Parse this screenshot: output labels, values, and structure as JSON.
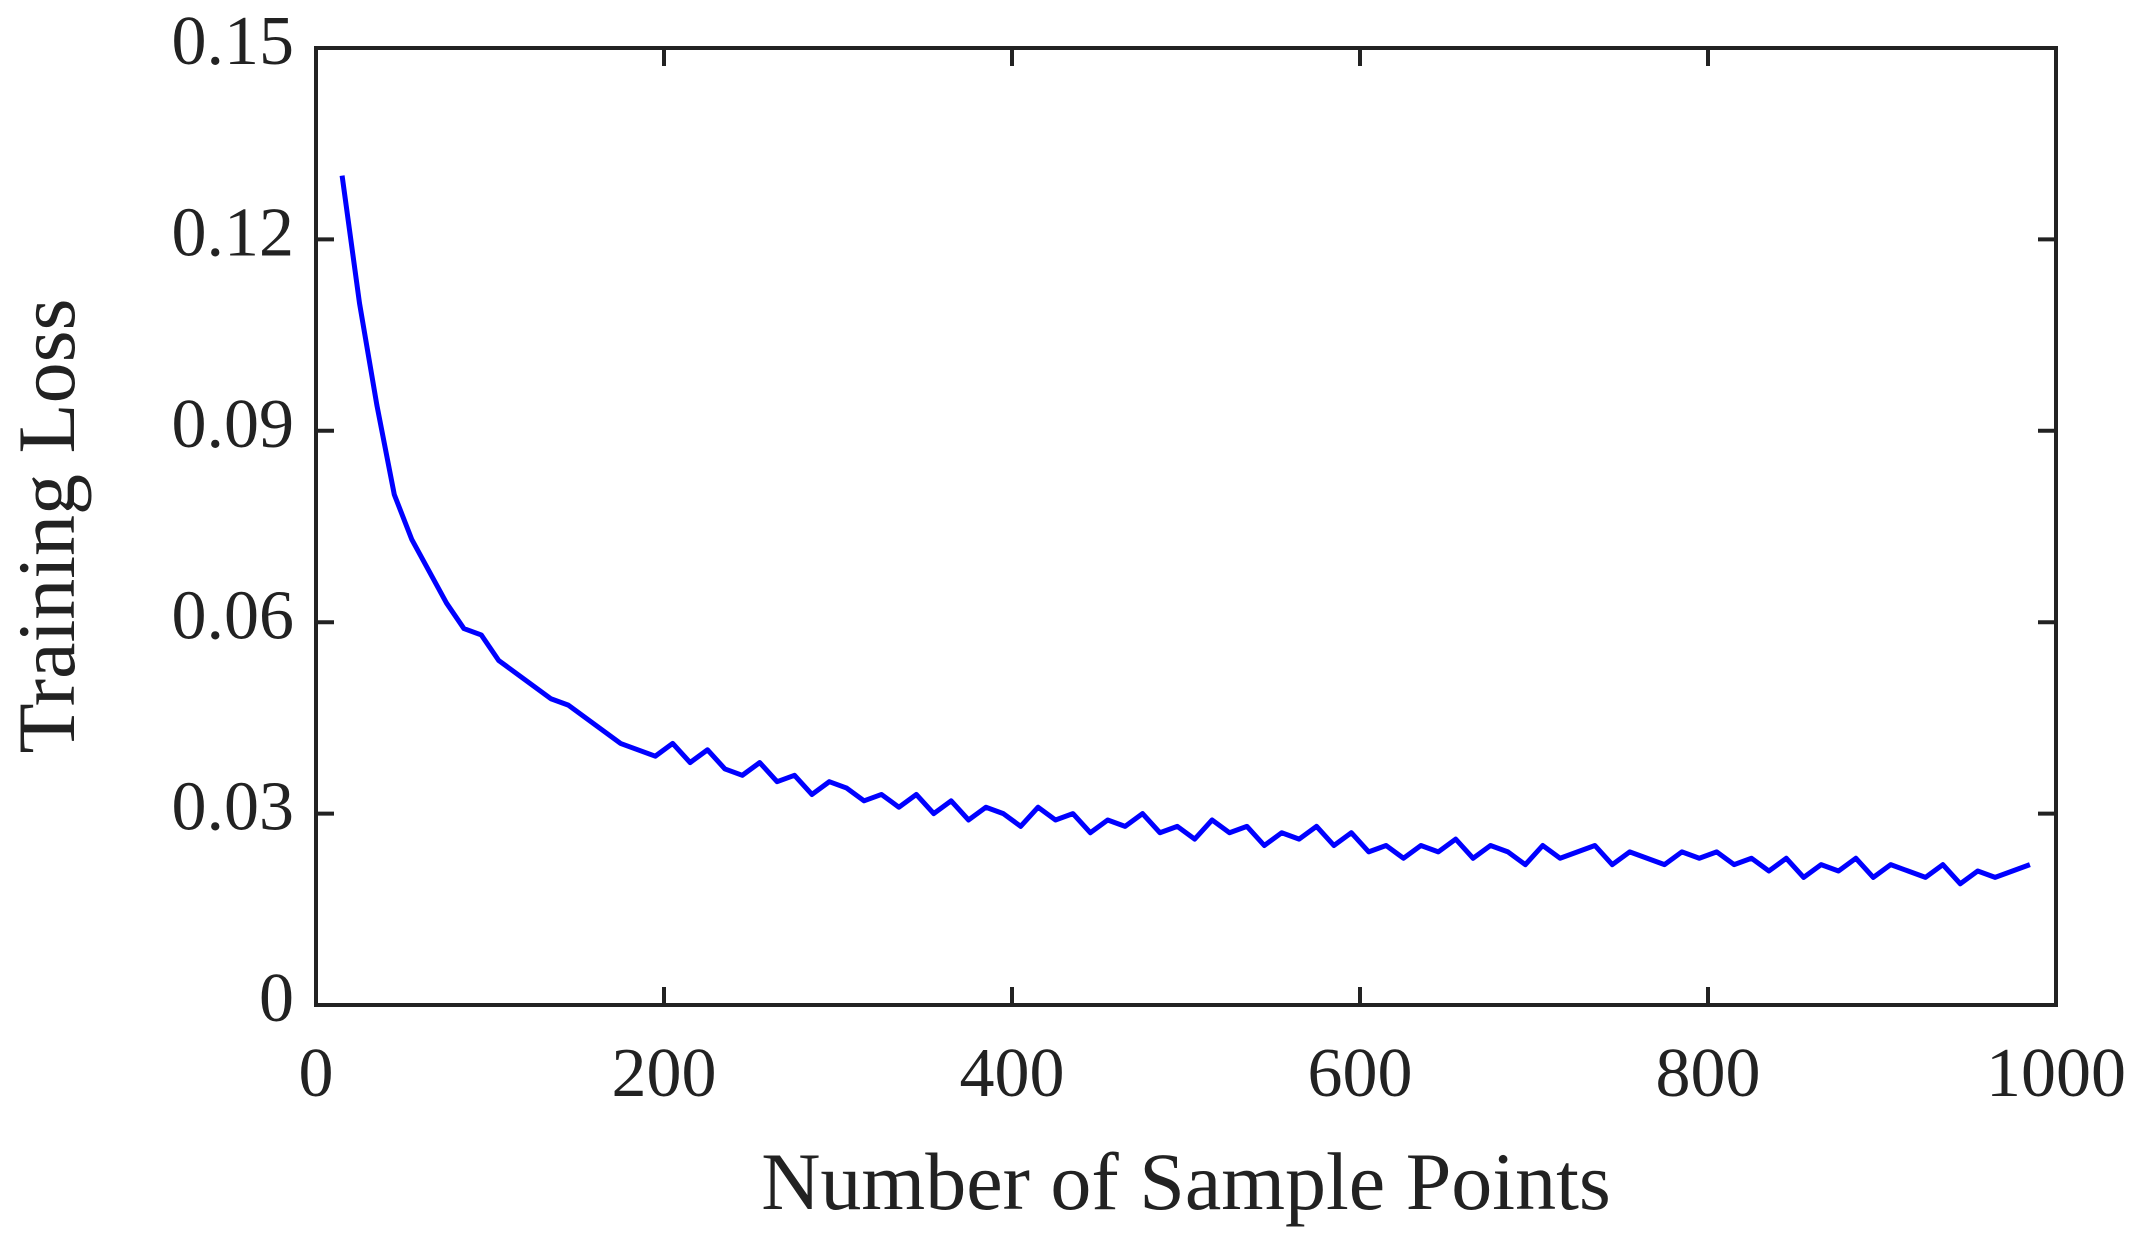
{
  "chart_data": {
    "type": "line",
    "x_label": "Number of Sample Points",
    "y_label": "Training Loss",
    "xlim": [
      0,
      1000
    ],
    "xticks": [
      0,
      200,
      400,
      600,
      800,
      1000
    ],
    "ylim": [
      0,
      0.15
    ],
    "yticks": [
      0,
      0.03,
      0.06,
      0.09,
      0.12,
      0.15
    ],
    "x": [
      15,
      25,
      35,
      45,
      55,
      65,
      75,
      85,
      95,
      105,
      115,
      125,
      135,
      145,
      155,
      165,
      175,
      185,
      195,
      205,
      215,
      225,
      235,
      245,
      255,
      265,
      275,
      285,
      295,
      305,
      315,
      325,
      335,
      345,
      355,
      365,
      375,
      385,
      395,
      405,
      415,
      425,
      435,
      445,
      455,
      465,
      475,
      485,
      495,
      505,
      515,
      525,
      535,
      545,
      555,
      565,
      575,
      585,
      595,
      605,
      615,
      625,
      635,
      645,
      655,
      665,
      675,
      685,
      695,
      705,
      715,
      725,
      735,
      745,
      755,
      765,
      775,
      785,
      795,
      805,
      815,
      825,
      835,
      845,
      855,
      865,
      875,
      885,
      895,
      905,
      915,
      925,
      935,
      945,
      955,
      965,
      975,
      985
    ],
    "series": [
      {
        "name": "Training Loss",
        "color": "#0000ff",
        "values": [
          0.13,
          0.11,
          0.094,
          0.08,
          0.073,
          0.068,
          0.063,
          0.059,
          0.058,
          0.054,
          0.052,
          0.05,
          0.048,
          0.047,
          0.045,
          0.043,
          0.041,
          0.04,
          0.039,
          0.041,
          0.038,
          0.04,
          0.037,
          0.036,
          0.038,
          0.035,
          0.036,
          0.033,
          0.035,
          0.034,
          0.032,
          0.033,
          0.031,
          0.033,
          0.03,
          0.032,
          0.029,
          0.031,
          0.03,
          0.028,
          0.031,
          0.029,
          0.03,
          0.027,
          0.029,
          0.028,
          0.03,
          0.027,
          0.028,
          0.026,
          0.029,
          0.027,
          0.028,
          0.025,
          0.027,
          0.026,
          0.028,
          0.025,
          0.027,
          0.024,
          0.025,
          0.023,
          0.025,
          0.024,
          0.026,
          0.023,
          0.025,
          0.024,
          0.022,
          0.025,
          0.023,
          0.024,
          0.025,
          0.022,
          0.024,
          0.023,
          0.022,
          0.024,
          0.023,
          0.024,
          0.022,
          0.023,
          0.021,
          0.023,
          0.02,
          0.022,
          0.021,
          0.023,
          0.02,
          0.022,
          0.021,
          0.02,
          0.022,
          0.019,
          0.021,
          0.02,
          0.021,
          0.022
        ]
      }
    ]
  }
}
